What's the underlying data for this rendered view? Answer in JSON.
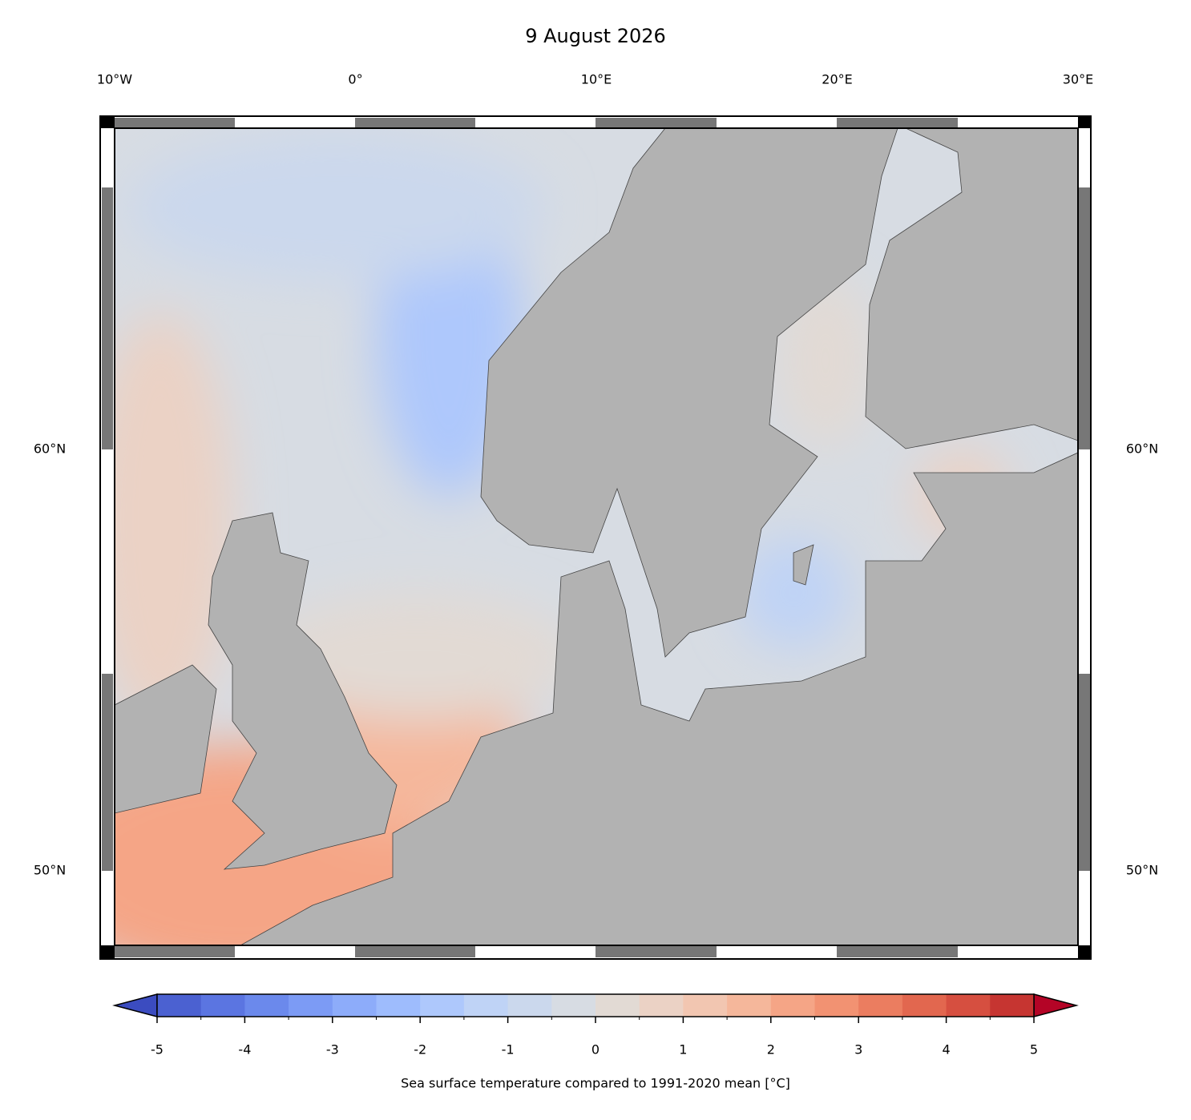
{
  "title": "9 August 2026",
  "map": {
    "xlim": [
      -10,
      30
    ],
    "ylim": [
      48.23,
      67.62
    ],
    "lon_ticks": [
      {
        "value": -10,
        "label": "10°W"
      },
      {
        "value": 0,
        "label": "0°"
      },
      {
        "value": 10,
        "label": "10°E"
      },
      {
        "value": 20,
        "label": "20°E"
      },
      {
        "value": 30,
        "label": "30°E"
      }
    ],
    "lat_ticks": [
      {
        "value": 50,
        "label": "50°N"
      },
      {
        "value": 60,
        "label": "60°N"
      }
    ]
  },
  "colorbar": {
    "label": "Sea surface temperature compared to 1991-2020 mean [°C]",
    "lim": [
      -5,
      5
    ],
    "ticks": [
      -5,
      -4,
      -3,
      -2,
      -1,
      0,
      1,
      2,
      3,
      4,
      5
    ],
    "levels": [
      -5,
      -4.5,
      -4,
      -3.5,
      -3,
      -2.5,
      -2,
      -1.5,
      -1,
      -0.5,
      0,
      0.5,
      1,
      1.5,
      2,
      2.5,
      3,
      3.5,
      4,
      4.5,
      5
    ],
    "colors": [
      "#4b61d1",
      "#5b75e1",
      "#6b89ec",
      "#7c9bf5",
      "#8dacfa",
      "#9ebcfd",
      "#aec8fc",
      "#bfd3f6",
      "#cbd8ed",
      "#d7dce3",
      "#e2dad4",
      "#ebd2c5",
      "#f2c6b1",
      "#f5b79b",
      "#f5a586",
      "#f29272",
      "#eb7d60",
      "#e2674f",
      "#d64f40",
      "#c63531"
    ],
    "under_color": "#3b4cc0",
    "over_color": "#b40426"
  }
}
